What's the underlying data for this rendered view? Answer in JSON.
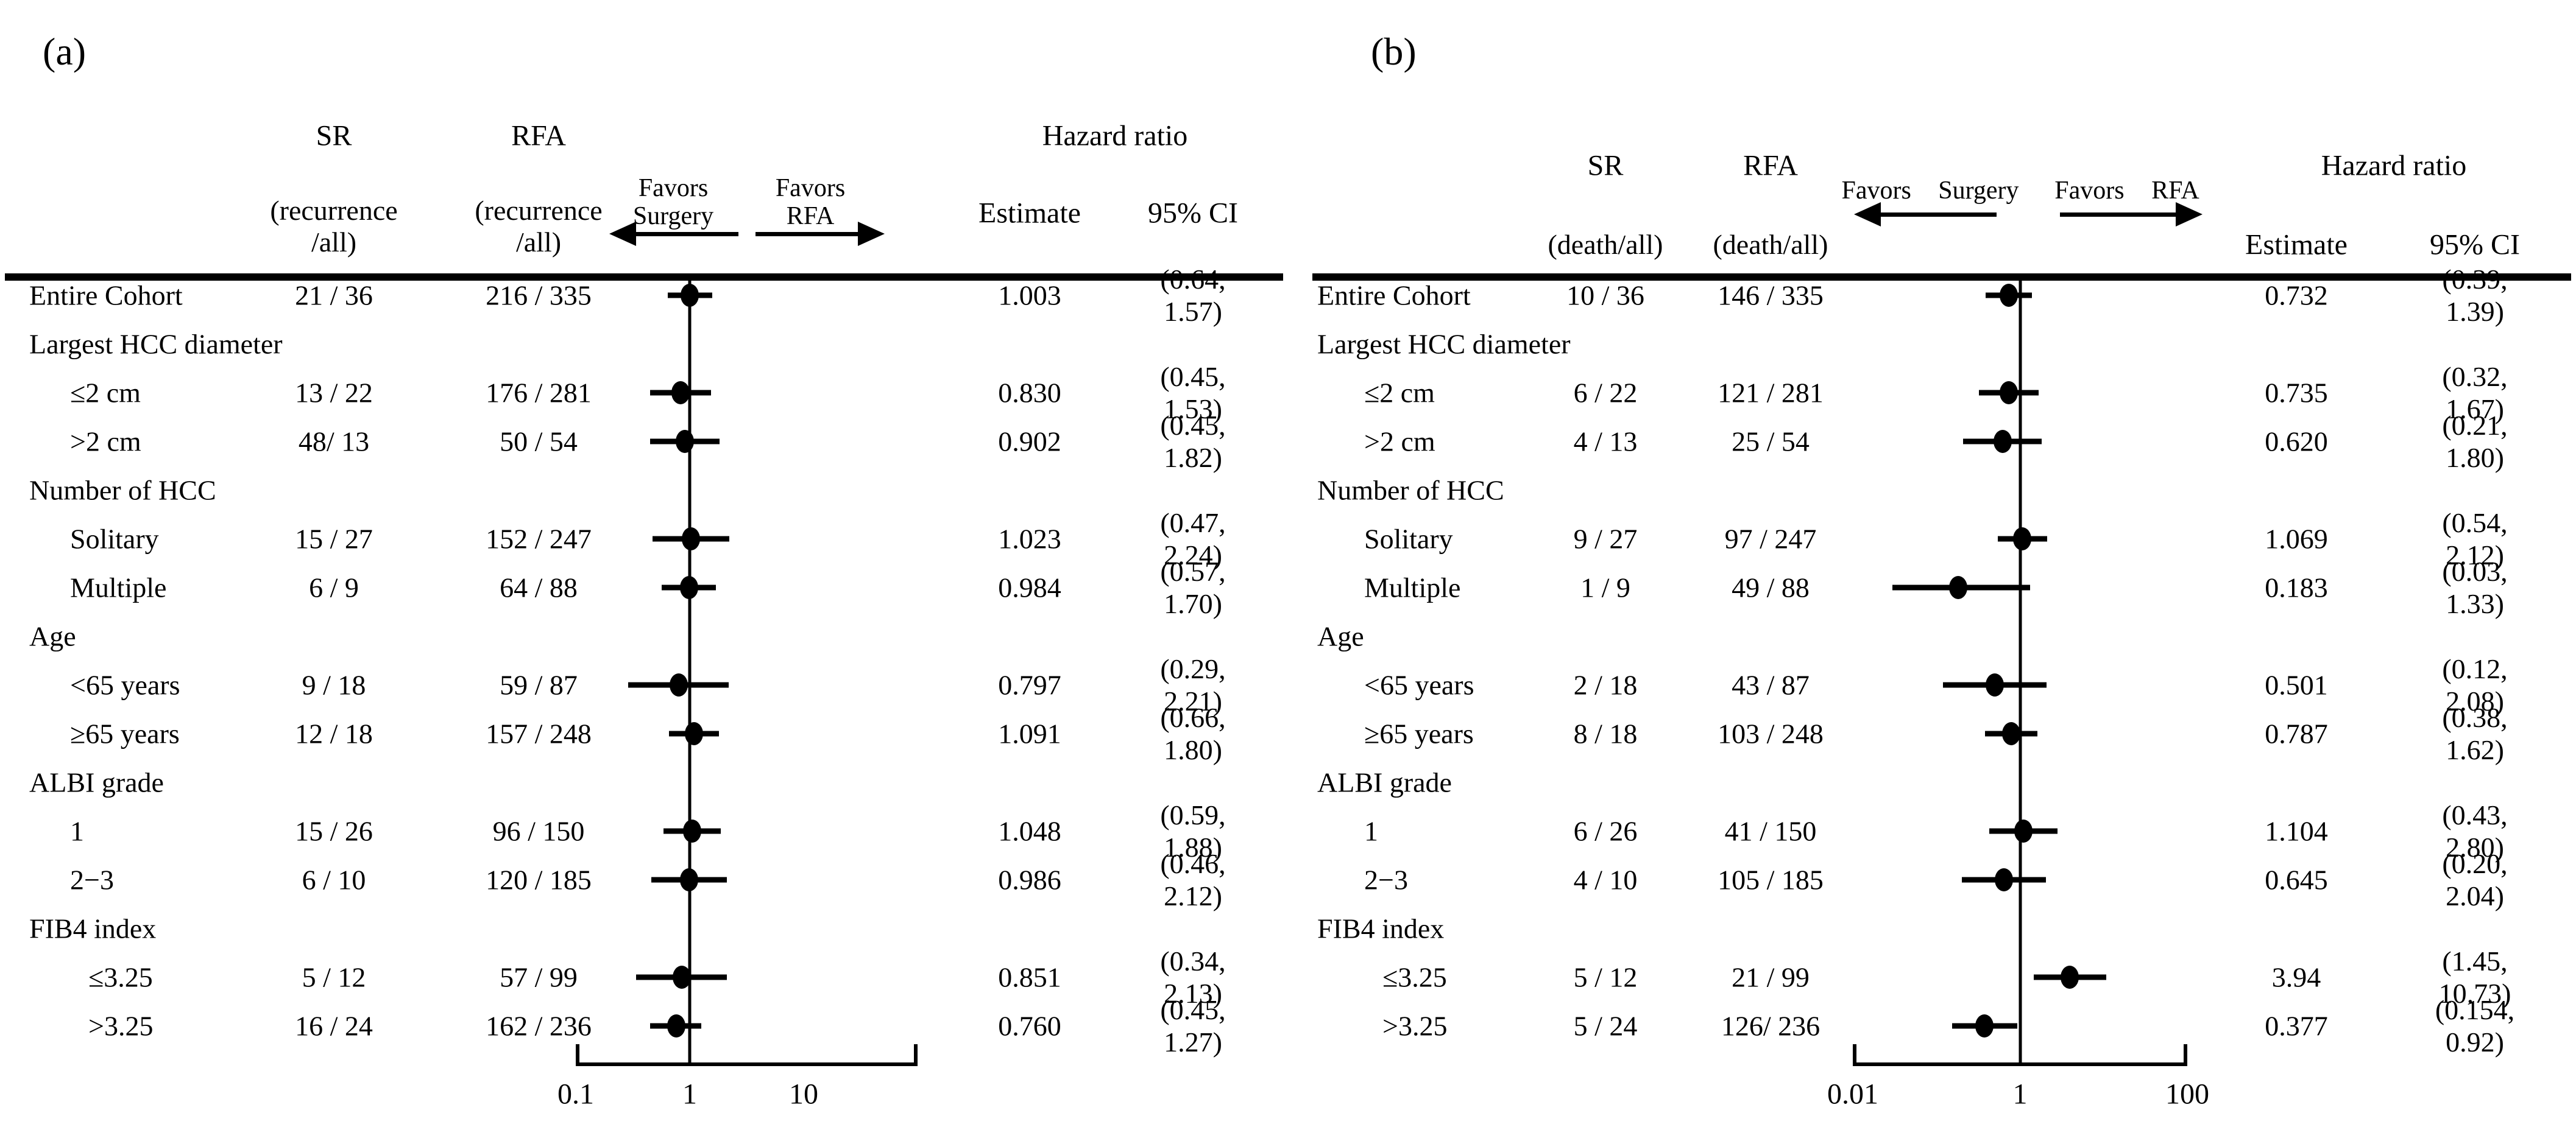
{
  "chart_data": [
    {
      "type": "forest",
      "panel_label": "(a)",
      "headers": {
        "sr": "SR",
        "rfa": "RFA",
        "sr_sub": "(recurrence\n/all)",
        "rfa_sub": "(recurrence\n/all)",
        "hazard_ratio": "Hazard ratio",
        "estimate": "Estimate",
        "ci": "95% CI"
      },
      "favors_left": "Favors\nSurgery",
      "favors_right": "Favors\nRFA",
      "axis": {
        "scale": "log",
        "min": 0.1,
        "max": 100,
        "tick_labels": [
          "0.1",
          "1",
          "10"
        ],
        "reference_value": 1
      },
      "rows": [
        {
          "label": "Entire Cohort",
          "indent": 0,
          "sr": "21 / 36",
          "rfa": "216 / 335",
          "estimate_text": "1.003",
          "ci_text": "(0.64, 1.57)",
          "estimate": 1.003,
          "ci_low": 0.64,
          "ci_high": 1.57
        },
        {
          "label": "Largest HCC diameter",
          "group": true
        },
        {
          "label": "≤2 cm",
          "indent": 1,
          "sr": "13 / 22",
          "rfa": "176 / 281",
          "estimate_text": "0.830",
          "ci_text": "(0.45, 1.53)",
          "estimate": 0.83,
          "ci_low": 0.45,
          "ci_high": 1.53
        },
        {
          "label": ">2 cm",
          "indent": 1,
          "sr": "48/ 13",
          "rfa": "50 / 54",
          "estimate_text": "0.902",
          "ci_text": "(0.45, 1.82)",
          "estimate": 0.902,
          "ci_low": 0.45,
          "ci_high": 1.82
        },
        {
          "label": "Number of HCC",
          "group": true
        },
        {
          "label": "Solitary",
          "indent": 1,
          "sr": "15 / 27",
          "rfa": "152 / 247",
          "estimate_text": "1.023",
          "ci_text": "(0.47, 2.24)",
          "estimate": 1.023,
          "ci_low": 0.47,
          "ci_high": 2.24
        },
        {
          "label": "Multiple",
          "indent": 1,
          "sr": "6 / 9",
          "rfa": "64 / 88",
          "estimate_text": "0.984",
          "ci_text": "(0.57, 1.70)",
          "estimate": 0.984,
          "ci_low": 0.57,
          "ci_high": 1.7
        },
        {
          "label": "Age",
          "group": true
        },
        {
          "label": "<65 years",
          "indent": 1,
          "sr": "9 / 18",
          "rfa": "59 / 87",
          "estimate_text": "0.797",
          "ci_text": "(0.29, 2.21)",
          "estimate": 0.797,
          "ci_low": 0.29,
          "ci_high": 2.21
        },
        {
          "label": "≥65 years",
          "indent": 1,
          "sr": "12 / 18",
          "rfa": "157 / 248",
          "estimate_text": "1.091",
          "ci_text": "(0.66, 1.80)",
          "estimate": 1.091,
          "ci_low": 0.66,
          "ci_high": 1.8
        },
        {
          "label": "ALBI grade",
          "group": true
        },
        {
          "label": "1",
          "indent": 1,
          "sr": "15 / 26",
          "rfa": "96 / 150",
          "estimate_text": "1.048",
          "ci_text": "(0.59, 1.88)",
          "estimate": 1.048,
          "ci_low": 0.59,
          "ci_high": 1.88
        },
        {
          "label": "2−3",
          "indent": 1,
          "sr": "6 / 10",
          "rfa": "120 / 185",
          "estimate_text": "0.986",
          "ci_text": "(0.46, 2.12)",
          "estimate": 0.986,
          "ci_low": 0.46,
          "ci_high": 2.12
        },
        {
          "label": "FIB4 index",
          "group": true
        },
        {
          "label": "≤3.25",
          "indent": 2,
          "sr": "5 / 12",
          "rfa": "57 / 99",
          "estimate_text": "0.851",
          "ci_text": "(0.34, 2.13)",
          "estimate": 0.851,
          "ci_low": 0.34,
          "ci_high": 2.13
        },
        {
          "label": ">3.25",
          "indent": 2,
          "sr": "16 / 24",
          "rfa": "162 / 236",
          "estimate_text": "0.760",
          "ci_text": "(0.45, 1.27)",
          "estimate": 0.76,
          "ci_low": 0.45,
          "ci_high": 1.27
        }
      ]
    },
    {
      "type": "forest",
      "panel_label": "(b)",
      "headers": {
        "sr": "SR",
        "rfa": "RFA",
        "sr_sub": "(death/all)",
        "rfa_sub": "(death/all)",
        "hazard_ratio": "Hazard ratio",
        "estimate": "Estimate",
        "ci": "95% CI"
      },
      "favors_left": "Favors Surgery",
      "favors_right": "Favors RFA",
      "axis": {
        "scale": "log",
        "min": 0.01,
        "max": 100,
        "tick_labels": [
          "0.01",
          "1",
          "100"
        ],
        "reference_value": 1
      },
      "rows": [
        {
          "label": "Entire Cohort",
          "indent": 0,
          "sr": "10 / 36",
          "rfa": "146 / 335",
          "estimate_text": "0.732",
          "ci_text": "(0.39, 1.39)",
          "estimate": 0.732,
          "ci_low": 0.39,
          "ci_high": 1.39
        },
        {
          "label": "Largest HCC diameter",
          "group": true
        },
        {
          "label": "≤2 cm",
          "indent": 1,
          "sr": "6 / 22",
          "rfa": "121 / 281",
          "estimate_text": "0.735",
          "ci_text": "(0.32, 1.67)",
          "estimate": 0.735,
          "ci_low": 0.32,
          "ci_high": 1.67
        },
        {
          "label": ">2 cm",
          "indent": 1,
          "sr": "4 / 13",
          "rfa": "25 / 54",
          "estimate_text": "0.620",
          "ci_text": "(0.21, 1.80)",
          "estimate": 0.62,
          "ci_low": 0.21,
          "ci_high": 1.8
        },
        {
          "label": "Number of HCC",
          "group": true
        },
        {
          "label": "Solitary",
          "indent": 1,
          "sr": "9 / 27",
          "rfa": "97 / 247",
          "estimate_text": "1.069",
          "ci_text": "(0.54, 2.12)",
          "estimate": 1.069,
          "ci_low": 0.54,
          "ci_high": 2.12
        },
        {
          "label": "Multiple",
          "indent": 1,
          "sr": "1 / 9",
          "rfa": "49 / 88",
          "estimate_text": "0.183",
          "ci_text": "(0.03, 1.33)",
          "estimate": 0.183,
          "ci_low": 0.03,
          "ci_high": 1.33
        },
        {
          "label": "Age",
          "group": true
        },
        {
          "label": "<65 years",
          "indent": 1,
          "sr": "2 / 18",
          "rfa": "43 / 87",
          "estimate_text": "0.501",
          "ci_text": "(0.12, 2.08)",
          "estimate": 0.501,
          "ci_low": 0.12,
          "ci_high": 2.08
        },
        {
          "label": "≥65 years",
          "indent": 1,
          "sr": "8 / 18",
          "rfa": "103 / 248",
          "estimate_text": "0.787",
          "ci_text": "(0.38, 1.62)",
          "estimate": 0.787,
          "ci_low": 0.38,
          "ci_high": 1.62
        },
        {
          "label": "ALBI grade",
          "group": true
        },
        {
          "label": "1",
          "indent": 1,
          "sr": "6 / 26",
          "rfa": "41 / 150",
          "estimate_text": "1.104",
          "ci_text": "(0.43, 2.80)",
          "estimate": 1.104,
          "ci_low": 0.43,
          "ci_high": 2.8
        },
        {
          "label": "2−3",
          "indent": 1,
          "sr": "4 / 10",
          "rfa": "105 / 185",
          "estimate_text": "0.645",
          "ci_text": "(0.20, 2.04)",
          "estimate": 0.645,
          "ci_low": 0.2,
          "ci_high": 2.04
        },
        {
          "label": "FIB4 index",
          "group": true
        },
        {
          "label": "≤3.25",
          "indent": 2,
          "sr": "5 / 12",
          "rfa": "21 / 99",
          "estimate_text": "3.94",
          "ci_text": "(1.45, 10.73)",
          "estimate": 3.94,
          "ci_low": 1.45,
          "ci_high": 10.73
        },
        {
          "label": ">3.25",
          "indent": 2,
          "sr": "5 / 24",
          "rfa": "126/ 236",
          "estimate_text": "0.377",
          "ci_text": "(0.154, 0.92)",
          "estimate": 0.377,
          "ci_low": 0.154,
          "ci_high": 0.92
        }
      ]
    }
  ],
  "colors": {
    "foreground": "#000000",
    "background": "#ffffff"
  }
}
